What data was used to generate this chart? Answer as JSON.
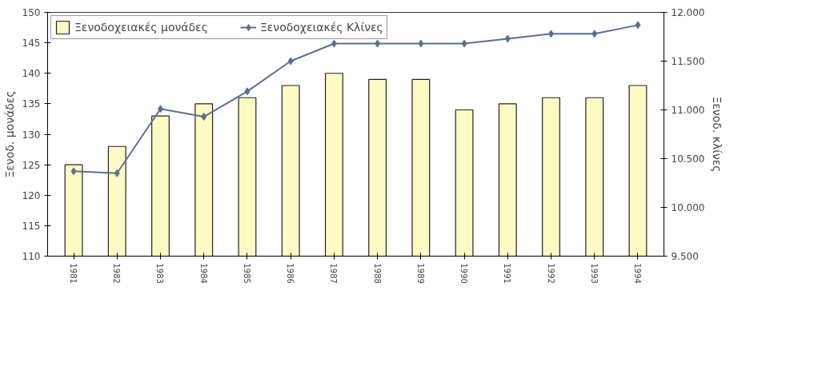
{
  "chart_data": {
    "type": "bar",
    "categories": [
      "1981",
      "1982",
      "1983",
      "1984",
      "1985",
      "1986",
      "1987",
      "1988",
      "1989",
      "1990",
      "1991",
      "1992",
      "1993",
      "1994"
    ],
    "series": [
      {
        "name": "Ξενοδοχειακές μονάδες",
        "color": "#fdfbc3",
        "values": [
          125,
          128,
          133,
          135,
          136,
          138,
          140,
          139,
          139,
          134,
          135,
          136,
          136,
          138
        ]
      },
      {
        "name": "Ξενοδοχειακές Κλίνες",
        "type": "line",
        "axis": "y2",
        "color": "#5a6f96",
        "values": [
          10370,
          10350,
          11010,
          10930,
          11190,
          11500,
          11680,
          11680,
          11680,
          11680,
          11730,
          11780,
          11780,
          11870
        ]
      }
    ],
    "ylabel": "Ξενοδ. μονάδες",
    "y2label": "Ξενοδ. κλίνες",
    "ylim": [
      110,
      150
    ],
    "yticks": [
      110,
      115,
      120,
      125,
      130,
      135,
      140,
      145,
      150
    ],
    "y2lim": [
      9500,
      12000
    ],
    "y2ticks": [
      {
        "value": 9500,
        "label": "9.500"
      },
      {
        "value": 10000,
        "label": "10.000"
      },
      {
        "value": 10500,
        "label": "10.500"
      },
      {
        "value": 11000,
        "label": "11.000"
      },
      {
        "value": 11500,
        "label": "11.500"
      },
      {
        "value": 12000,
        "label": "12.000"
      }
    ],
    "marker": "diamond",
    "legend": "top left",
    "grid": false
  }
}
